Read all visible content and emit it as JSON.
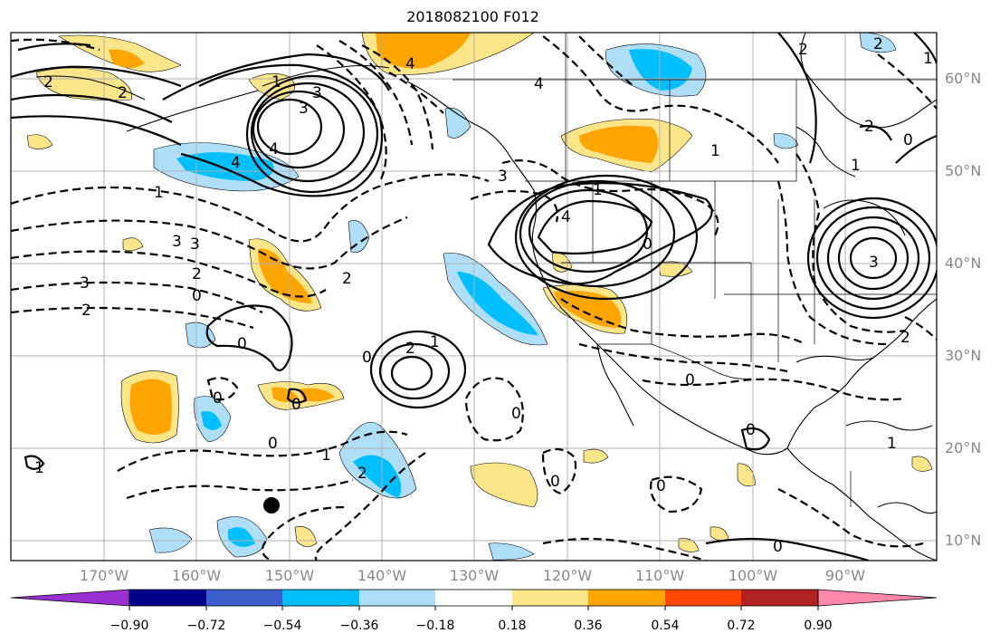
{
  "title": "2018082100 F012",
  "lat_labels": [
    "60°N",
    "50°N",
    "40°N",
    "30°N",
    "20°N",
    "10°N"
  ],
  "lon_labels": [
    "170°W",
    "160°W",
    "150°W",
    "140°W",
    "130°W",
    "120°W",
    "110°W",
    "100°W",
    "90°W"
  ],
  "colorbar": {
    "ticks": [
      "−0.90",
      "−0.72",
      "−0.54",
      "−0.36",
      "−0.18",
      "0.18",
      "0.36",
      "0.54",
      "0.72",
      "0.90"
    ],
    "colors": [
      "#9b30d0",
      "#00008b",
      "#3a5fcd",
      "#00bfff",
      "#afdef8",
      "#ffffff",
      "#fde68a",
      "#ffa500",
      "#ff4500",
      "#b22222",
      "#ff88aa"
    ]
  },
  "contour_labels": [
    "2",
    "2",
    "4",
    "3",
    "4",
    "3",
    "4",
    "1",
    "3",
    "2",
    "3",
    "2",
    "2",
    "0",
    "0",
    "1",
    "3",
    "1",
    "4",
    "0",
    "0",
    "2",
    "1",
    "1",
    "0",
    "2",
    "1",
    "0",
    "0",
    "0",
    "2",
    "1",
    "1",
    "0",
    "0",
    "0",
    "0",
    "1",
    "0",
    "2",
    "2",
    "1",
    "4",
    "3",
    "3",
    "2",
    "0"
  ],
  "marker": "filled-circle"
}
